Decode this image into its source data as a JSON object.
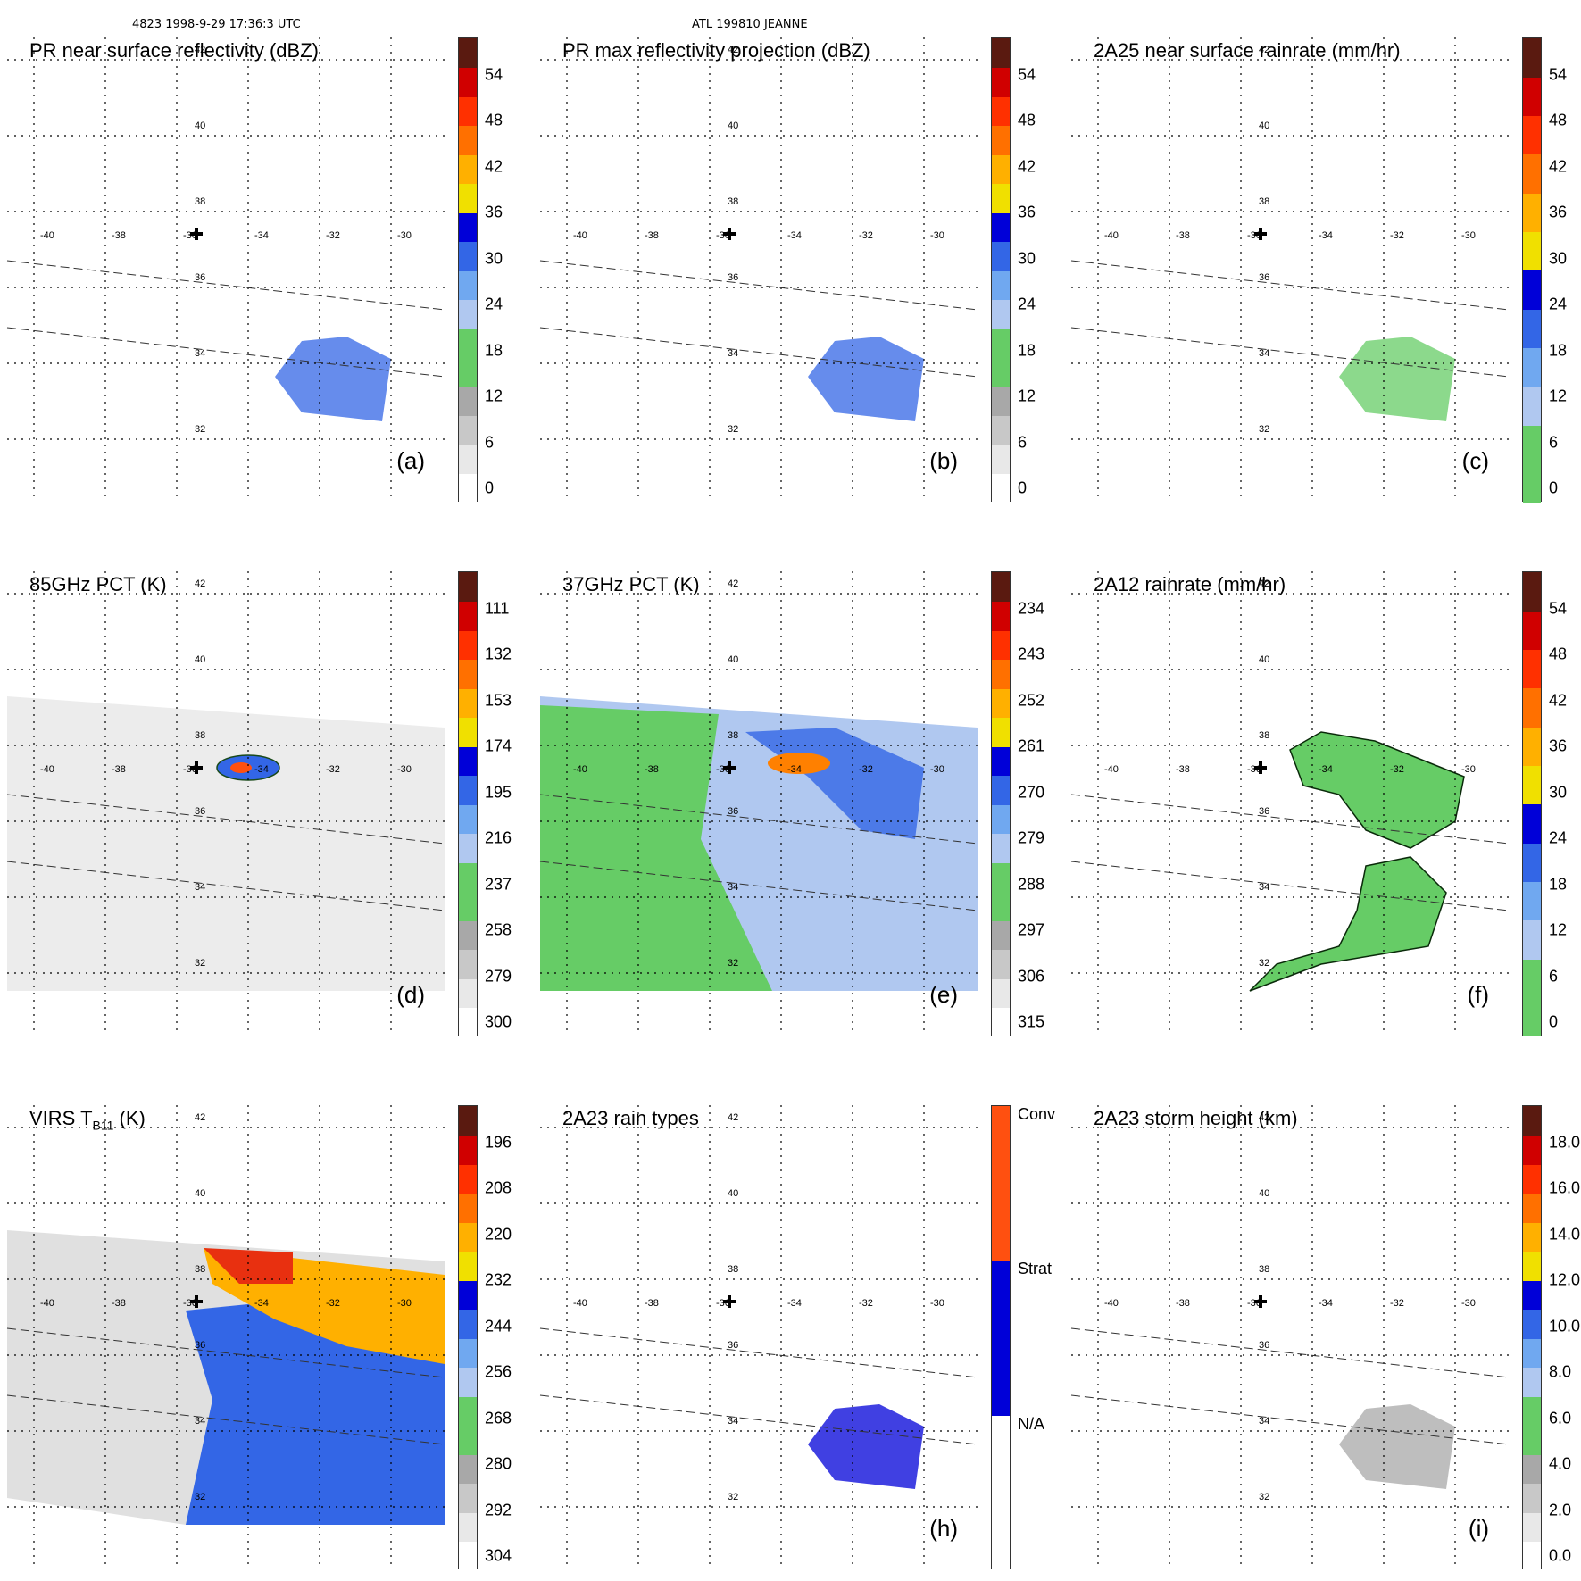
{
  "header": {
    "orbit_time": "4823 1998-9-29 17:36:3 UTC",
    "storm": "ATL 199810 JEANNE"
  },
  "map": {
    "lon_labels": [
      "-40",
      "-38",
      "-36",
      "-34",
      "-32",
      "-30"
    ],
    "lat_labels": [
      "32",
      "34",
      "36",
      "38",
      "40",
      "42"
    ]
  },
  "panels": [
    {
      "id": "a",
      "title": "PR near surface reflectivity (dBZ)",
      "tag": "(a)",
      "colorbar": {
        "ticks": [
          "0",
          "6",
          "12",
          "18",
          "24",
          "30",
          "36",
          "42",
          "48",
          "54"
        ],
        "colors": [
          "#ffffff",
          "#e8e8e8",
          "#c8c8c8",
          "#a8a8a8",
          "#66cc66",
          "#66cc66",
          "#b0c8f0",
          "#70a8f0",
          "#3366e6",
          "#0000d8",
          "#f0e000",
          "#ffb000",
          "#ff7000",
          "#ff3000",
          "#d00000",
          "#5a1a10"
        ]
      }
    },
    {
      "id": "b",
      "title": "PR max reflectivity projection (dBZ)",
      "tag": "(b)",
      "colorbar": {
        "ticks": [
          "0",
          "6",
          "12",
          "18",
          "24",
          "30",
          "36",
          "42",
          "48",
          "54"
        ],
        "colors": [
          "#ffffff",
          "#e8e8e8",
          "#c8c8c8",
          "#a8a8a8",
          "#66cc66",
          "#66cc66",
          "#b0c8f0",
          "#70a8f0",
          "#3366e6",
          "#0000d8",
          "#f0e000",
          "#ffb000",
          "#ff7000",
          "#ff3000",
          "#d00000",
          "#5a1a10"
        ]
      }
    },
    {
      "id": "c",
      "title": "2A25 near surface rainrate (mm/hr)",
      "tag": "(c)",
      "colorbar": {
        "ticks": [
          "0",
          "6",
          "12",
          "18",
          "24",
          "30",
          "36",
          "42",
          "48",
          "54"
        ],
        "colors": [
          "#66cc66",
          "#66cc66",
          "#b0c8f0",
          "#70a8f0",
          "#3366e6",
          "#0000d8",
          "#f0e000",
          "#ffb000",
          "#ff7000",
          "#ff3000",
          "#d00000",
          "#5a1a10"
        ]
      }
    },
    {
      "id": "d",
      "title": "85GHz PCT (K)",
      "tag": "(d)",
      "colorbar": {
        "ticks": [
          "300",
          "279",
          "258",
          "237",
          "216",
          "195",
          "174",
          "153",
          "132",
          "111"
        ],
        "colors": [
          "#ffffff",
          "#e8e8e8",
          "#c8c8c8",
          "#a8a8a8",
          "#66cc66",
          "#66cc66",
          "#b0c8f0",
          "#70a8f0",
          "#3366e6",
          "#0000d8",
          "#f0e000",
          "#ffb000",
          "#ff7000",
          "#ff3000",
          "#d00000",
          "#5a1a10"
        ]
      }
    },
    {
      "id": "e",
      "title": "37GHz PCT (K)",
      "tag": "(e)",
      "colorbar": {
        "ticks": [
          "315",
          "306",
          "297",
          "288",
          "279",
          "270",
          "261",
          "252",
          "243",
          "234"
        ],
        "colors": [
          "#ffffff",
          "#e8e8e8",
          "#c8c8c8",
          "#a8a8a8",
          "#66cc66",
          "#66cc66",
          "#b0c8f0",
          "#70a8f0",
          "#3366e6",
          "#0000d8",
          "#f0e000",
          "#ffb000",
          "#ff7000",
          "#ff3000",
          "#d00000",
          "#5a1a10"
        ]
      }
    },
    {
      "id": "f",
      "title": "2A12 rainrate (mm/hr)",
      "tag": "(f)",
      "colorbar": {
        "ticks": [
          "0",
          "6",
          "12",
          "18",
          "24",
          "30",
          "36",
          "42",
          "48",
          "54"
        ],
        "colors": [
          "#66cc66",
          "#66cc66",
          "#b0c8f0",
          "#70a8f0",
          "#3366e6",
          "#0000d8",
          "#f0e000",
          "#ffb000",
          "#ff7000",
          "#ff3000",
          "#d00000",
          "#5a1a10"
        ]
      }
    },
    {
      "id": "g",
      "title": "VIRS T",
      "title_sub": "B11",
      "title_suffix": " (K)",
      "tag": "",
      "colorbar": {
        "ticks": [
          "304",
          "292",
          "280",
          "268",
          "256",
          "244",
          "232",
          "220",
          "208",
          "196"
        ],
        "colors": [
          "#ffffff",
          "#e8e8e8",
          "#c8c8c8",
          "#a8a8a8",
          "#66cc66",
          "#66cc66",
          "#b0c8f0",
          "#70a8f0",
          "#3366e6",
          "#0000d8",
          "#f0e000",
          "#ffb000",
          "#ff7000",
          "#ff3000",
          "#d00000",
          "#5a1a10"
        ]
      }
    },
    {
      "id": "h",
      "title": "2A23 rain types",
      "tag": "(h)",
      "colorbar": {
        "categorical": true,
        "labels": [
          "N/A",
          "Strat",
          "Conv"
        ],
        "colors": [
          "#ffffff",
          "#0000d8",
          "#ff5010"
        ]
      }
    },
    {
      "id": "i",
      "title": "2A23 storm height (km)",
      "tag": "(i)",
      "colorbar": {
        "ticks": [
          "0.0",
          "2.0",
          "4.0",
          "6.0",
          "8.0",
          "10.0",
          "12.0",
          "14.0",
          "16.0",
          "18.0"
        ],
        "colors": [
          "#ffffff",
          "#e8e8e8",
          "#c8c8c8",
          "#a8a8a8",
          "#66cc66",
          "#66cc66",
          "#b0c8f0",
          "#70a8f0",
          "#3366e6",
          "#0000d8",
          "#f0e000",
          "#ffb000",
          "#ff7000",
          "#ff3000",
          "#d00000",
          "#5a1a10"
        ]
      }
    }
  ]
}
